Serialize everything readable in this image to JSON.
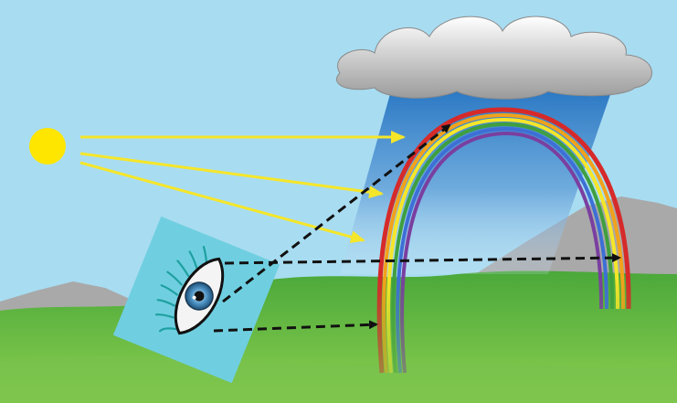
{
  "scene": {
    "colors": {
      "sky": "#a8dcf1",
      "sun": "#ffe600",
      "sunray": "#f5e62a",
      "cloud": "#e6e6e6",
      "rain_top": "#1f6fbf",
      "mountain": "#a9a9a9",
      "grass_light": "#77c44a",
      "grass_dark": "#1f8f3a",
      "eye_panel": "#6fcfe0",
      "iris": "#4a8fc0",
      "sight_line": "#111111",
      "rainbow": [
        "#d62a2a",
        "#f2a21a",
        "#f5e62a",
        "#3f9f3f",
        "#3d6fd6",
        "#7a3fa0"
      ]
    },
    "elements": {
      "sun": "sun",
      "cloud": "rain-cloud",
      "rain": "rain-shaft",
      "rainbow": "rainbow-arc",
      "eye": "observer-eye",
      "sun_rays": 3,
      "sight_lines": 3
    }
  }
}
